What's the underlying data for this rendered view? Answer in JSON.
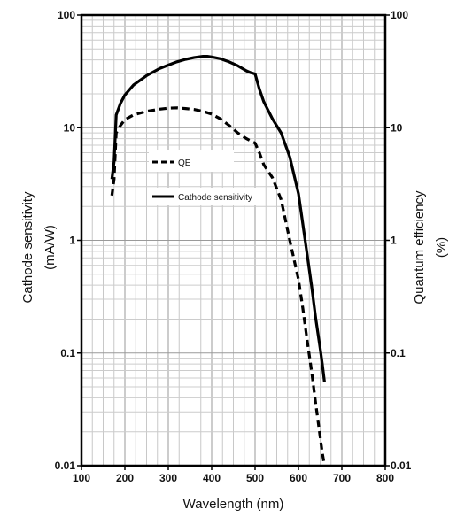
{
  "chart_data": {
    "type": "line",
    "xlabel": "Wavelength  (nm)",
    "ylabel_left": [
      "Cathode sensitivity",
      "(mA/W)"
    ],
    "ylabel_right": [
      "Quantum efficiency",
      "(%)"
    ],
    "xlim": [
      100,
      800
    ],
    "ylim": [
      0.01,
      100
    ],
    "yscale": "log",
    "grid": true,
    "legend_position": "upper-left inside plot",
    "x_ticks": [
      100,
      200,
      300,
      400,
      500,
      600,
      700,
      800
    ],
    "x_tick_labels": [
      "100",
      "200",
      "300",
      "400",
      "500",
      "600",
      "700",
      "800"
    ],
    "y_ticks": [
      0.01,
      0.1,
      1,
      10,
      100
    ],
    "y_tick_labels_left": [
      "0.01",
      "0.1",
      "1",
      "10",
      "100"
    ],
    "y_tick_labels_right": [
      "0.01",
      "0.1",
      "1",
      "10",
      "100"
    ],
    "series": [
      {
        "name": "QE",
        "style": "dashed",
        "color": "#000000",
        "x": [
          170,
          175,
          180,
          190,
          200,
          220,
          250,
          280,
          300,
          320,
          340,
          360,
          380,
          400,
          420,
          440,
          460,
          480,
          500,
          510,
          520,
          540,
          560,
          580,
          600,
          610,
          620,
          630,
          640,
          645,
          650,
          655,
          660
        ],
        "y": [
          2.5,
          3.5,
          9.0,
          10.5,
          11.8,
          13.0,
          14.0,
          14.6,
          14.9,
          15.0,
          14.8,
          14.5,
          14.0,
          13.2,
          12.0,
          10.5,
          9.0,
          8.0,
          7.3,
          6.0,
          4.7,
          3.6,
          2.3,
          1.0,
          0.45,
          0.25,
          0.13,
          0.07,
          0.035,
          0.025,
          0.018,
          0.013,
          0.01
        ]
      },
      {
        "name": "Cathode sensitivity",
        "style": "solid",
        "color": "#000000",
        "x": [
          170,
          175,
          180,
          190,
          200,
          220,
          250,
          280,
          300,
          320,
          340,
          360,
          380,
          390,
          400,
          420,
          440,
          460,
          480,
          490,
          500,
          510,
          520,
          540,
          560,
          580,
          600,
          610,
          620,
          630,
          640,
          650,
          655,
          660
        ],
        "y": [
          3.5,
          5.0,
          13.0,
          16.5,
          19.5,
          24.0,
          29.0,
          33.5,
          36.0,
          38.5,
          40.5,
          42.0,
          43.0,
          43.0,
          42.5,
          41.0,
          38.5,
          35.5,
          32.0,
          30.8,
          30.0,
          22.0,
          17.0,
          12.0,
          9.0,
          5.5,
          2.6,
          1.4,
          0.75,
          0.4,
          0.2,
          0.11,
          0.08,
          0.055
        ]
      }
    ]
  }
}
